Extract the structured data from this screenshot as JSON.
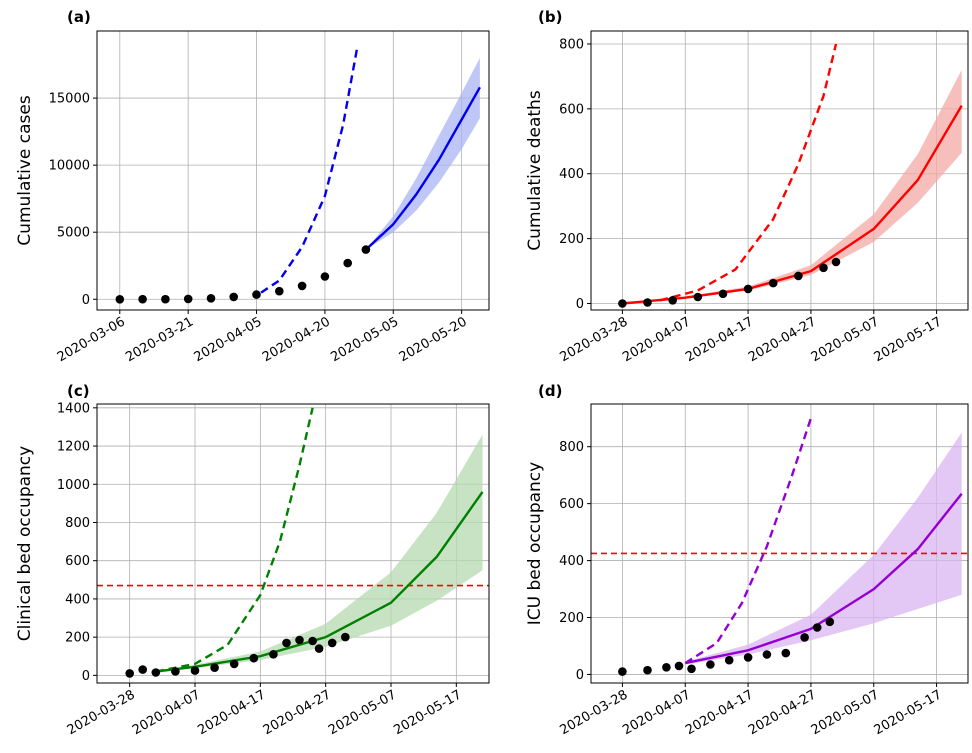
{
  "chart_data": [
    {
      "type": "line",
      "panel_label": "(a)",
      "ylabel": "Cumulative cases",
      "xlabel": "",
      "title": "",
      "x_type": "date",
      "xlim": [
        "2020-03-01",
        "2020-05-26"
      ],
      "ylim": [
        -800,
        20000
      ],
      "xticks": [
        "2020-03-06",
        "2020-03-21",
        "2020-04-05",
        "2020-04-20",
        "2020-05-05",
        "2020-05-20"
      ],
      "yticks": [
        0,
        5000,
        10000,
        15000
      ],
      "ytick_labels": [
        "0",
        "5000",
        "10000",
        "15000"
      ],
      "grid": true,
      "colors": {
        "series": "#0000ee",
        "band": "#aab4f4",
        "observed": "#000000"
      },
      "observed": {
        "x": [
          "2020-03-06",
          "2020-03-11",
          "2020-03-16",
          "2020-03-21",
          "2020-03-26",
          "2020-03-31",
          "2020-04-05",
          "2020-04-10",
          "2020-04-15",
          "2020-04-20",
          "2020-04-25",
          "2020-04-29"
        ],
        "y": [
          0,
          2,
          8,
          25,
          70,
          180,
          350,
          600,
          1000,
          1700,
          2700,
          3700
        ]
      },
      "fit": {
        "style": "solid",
        "x": [
          "2020-04-29",
          "2020-05-05",
          "2020-05-10",
          "2020-05-15",
          "2020-05-20",
          "2020-05-24"
        ],
        "y": [
          3700,
          5600,
          7800,
          10400,
          13400,
          15800
        ]
      },
      "band": {
        "x": [
          "2020-04-29",
          "2020-05-05",
          "2020-05-10",
          "2020-05-15",
          "2020-05-20",
          "2020-05-24"
        ],
        "lower": [
          3700,
          5000,
          6600,
          8700,
          11200,
          13500
        ],
        "upper": [
          3700,
          6200,
          9000,
          12200,
          15400,
          18000
        ]
      },
      "counterfactual": {
        "style": "dashed",
        "x": [
          "2020-04-06",
          "2020-04-10",
          "2020-04-15",
          "2020-04-20",
          "2020-04-24",
          "2020-04-27"
        ],
        "y": [
          500,
          1400,
          3900,
          7700,
          13000,
          18600
        ]
      }
    },
    {
      "type": "line",
      "panel_label": "(b)",
      "ylabel": "Cumulative deaths",
      "xlabel": "",
      "title": "",
      "x_type": "date",
      "xlim": [
        "2020-03-23",
        "2020-05-22"
      ],
      "ylim": [
        -20,
        840
      ],
      "xticks": [
        "2020-03-28",
        "2020-04-07",
        "2020-04-17",
        "2020-04-27",
        "2020-05-07",
        "2020-05-17"
      ],
      "yticks": [
        0,
        200,
        400,
        600,
        800
      ],
      "ytick_labels": [
        "0",
        "200",
        "400",
        "600",
        "800"
      ],
      "grid": true,
      "colors": {
        "series": "#ff0000",
        "band": "#f4a9a4",
        "observed": "#000000"
      },
      "observed": {
        "x": [
          "2020-03-28",
          "2020-04-01",
          "2020-04-05",
          "2020-04-09",
          "2020-04-13",
          "2020-04-17",
          "2020-04-21",
          "2020-04-25",
          "2020-04-29",
          "2020-05-01"
        ],
        "y": [
          0,
          3,
          10,
          20,
          30,
          45,
          63,
          85,
          110,
          128
        ]
      },
      "fit": {
        "style": "solid",
        "x": [
          "2020-03-28",
          "2020-04-07",
          "2020-04-17",
          "2020-04-27",
          "2020-05-07",
          "2020-05-14",
          "2020-05-21"
        ],
        "y": [
          0,
          18,
          45,
          100,
          230,
          380,
          610
        ]
      },
      "band": {
        "x": [
          "2020-04-07",
          "2020-04-17",
          "2020-04-27",
          "2020-05-07",
          "2020-05-14",
          "2020-05-21"
        ],
        "lower": [
          16,
          40,
          88,
          190,
          310,
          465
        ],
        "upper": [
          22,
          52,
          118,
          275,
          460,
          720
        ]
      },
      "counterfactual": {
        "style": "dashed",
        "x": [
          "2020-04-03",
          "2020-04-09",
          "2020-04-15",
          "2020-04-21",
          "2020-04-25",
          "2020-04-29",
          "2020-05-01"
        ],
        "y": [
          10,
          40,
          105,
          260,
          430,
          640,
          800
        ]
      }
    },
    {
      "type": "line",
      "panel_label": "(c)",
      "ylabel": "Clinical bed occupancy",
      "xlabel": "",
      "title": "",
      "x_type": "date",
      "xlim": [
        "2020-03-23",
        "2020-05-22"
      ],
      "ylim": [
        -40,
        1420
      ],
      "xticks": [
        "2020-03-28",
        "2020-04-07",
        "2020-04-17",
        "2020-04-27",
        "2020-05-07",
        "2020-05-17"
      ],
      "yticks": [
        0,
        200,
        400,
        600,
        800,
        1000,
        1200,
        1400
      ],
      "ytick_labels": [
        "0",
        "200",
        "400",
        "600",
        "800",
        "1000",
        "1200",
        "1400"
      ],
      "threshold": 470,
      "threshold_color": "#ff0000",
      "grid": true,
      "colors": {
        "series": "#008000",
        "band": "#b5d9b0",
        "observed": "#000000"
      },
      "observed": {
        "x": [
          "2020-03-28",
          "2020-03-30",
          "2020-04-01",
          "2020-04-04",
          "2020-04-07",
          "2020-04-10",
          "2020-04-13",
          "2020-04-16",
          "2020-04-19",
          "2020-04-21",
          "2020-04-23",
          "2020-04-25",
          "2020-04-26",
          "2020-04-28",
          "2020-04-30"
        ],
        "y": [
          10,
          30,
          15,
          20,
          25,
          40,
          60,
          90,
          110,
          170,
          185,
          180,
          140,
          170,
          200
        ]
      },
      "fit": {
        "style": "solid",
        "x": [
          "2020-04-01",
          "2020-04-07",
          "2020-04-17",
          "2020-04-27",
          "2020-05-07",
          "2020-05-14",
          "2020-05-21"
        ],
        "y": [
          20,
          45,
          100,
          200,
          380,
          620,
          960
        ]
      },
      "band": {
        "x": [
          "2020-04-01",
          "2020-04-07",
          "2020-04-17",
          "2020-04-27",
          "2020-05-07",
          "2020-05-14",
          "2020-05-21"
        ],
        "lower": [
          18,
          38,
          80,
          150,
          260,
          390,
          550
        ],
        "upper": [
          22,
          55,
          125,
          270,
          540,
          850,
          1260
        ]
      },
      "counterfactual": {
        "style": "dashed",
        "x": [
          "2020-04-01",
          "2020-04-07",
          "2020-04-12",
          "2020-04-17",
          "2020-04-20",
          "2020-04-23",
          "2020-04-25"
        ],
        "y": [
          20,
          60,
          160,
          420,
          700,
          1100,
          1400
        ]
      }
    },
    {
      "type": "line",
      "panel_label": "(d)",
      "ylabel": "ICU bed occupancy",
      "xlabel": "",
      "title": "",
      "x_type": "date",
      "xlim": [
        "2020-03-23",
        "2020-05-22"
      ],
      "ylim": [
        -30,
        950
      ],
      "xticks": [
        "2020-03-28",
        "2020-04-07",
        "2020-04-17",
        "2020-04-27",
        "2020-05-07",
        "2020-05-17"
      ],
      "yticks": [
        0,
        200,
        400,
        600,
        800
      ],
      "ytick_labels": [
        "0",
        "200",
        "400",
        "600",
        "800"
      ],
      "threshold": 425,
      "threshold_color": "#ff0000",
      "grid": true,
      "colors": {
        "series": "#9400d3",
        "band": "#d9b4f0",
        "observed": "#000000"
      },
      "observed": {
        "x": [
          "2020-03-28",
          "2020-04-01",
          "2020-04-04",
          "2020-04-06",
          "2020-04-08",
          "2020-04-11",
          "2020-04-14",
          "2020-04-17",
          "2020-04-20",
          "2020-04-23",
          "2020-04-26",
          "2020-04-28",
          "2020-04-30"
        ],
        "y": [
          10,
          15,
          25,
          30,
          20,
          35,
          50,
          60,
          70,
          75,
          130,
          165,
          185
        ]
      },
      "fit": {
        "style": "solid",
        "x": [
          "2020-04-07",
          "2020-04-17",
          "2020-04-27",
          "2020-05-07",
          "2020-05-14",
          "2020-05-21"
        ],
        "y": [
          40,
          85,
          160,
          300,
          440,
          635
        ]
      },
      "band": {
        "x": [
          "2020-04-07",
          "2020-04-17",
          "2020-04-27",
          "2020-05-07",
          "2020-05-14",
          "2020-05-21"
        ],
        "lower": [
          35,
          70,
          120,
          180,
          230,
          280
        ],
        "upper": [
          45,
          105,
          210,
          420,
          620,
          850
        ]
      },
      "counterfactual": {
        "style": "dashed",
        "x": [
          "2020-04-07",
          "2020-04-12",
          "2020-04-16",
          "2020-04-20",
          "2020-04-24",
          "2020-04-27"
        ],
        "y": [
          40,
          110,
          250,
          450,
          700,
          900
        ]
      }
    }
  ]
}
